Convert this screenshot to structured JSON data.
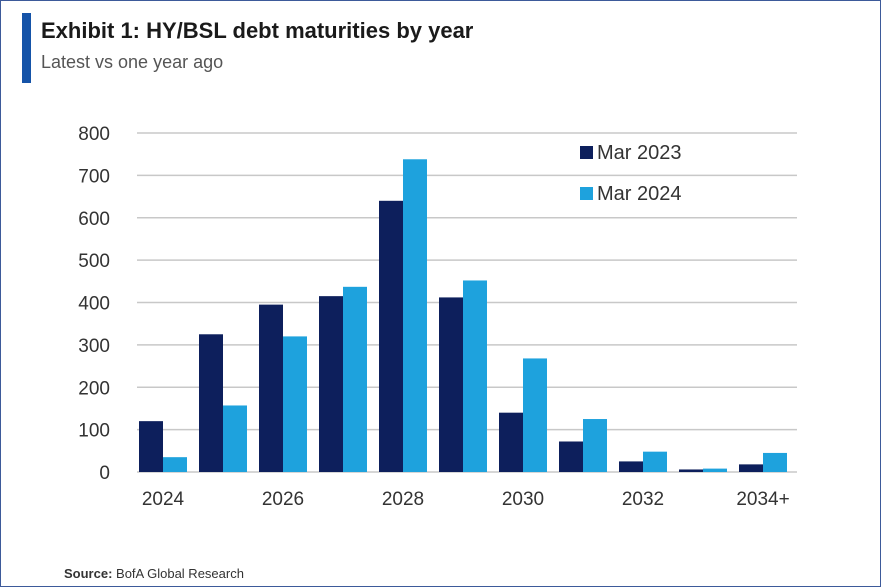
{
  "header": {
    "title": "Exhibit 1: HY/BSL debt maturities by year",
    "subtitle": "Latest vs one year ago"
  },
  "footer": {
    "source_label": "Source:",
    "source_text": "BofA Global Research"
  },
  "colors": {
    "accent": "#1553a8",
    "series_1": "#0d1f5c",
    "series_2": "#1ea2dd",
    "grid": "#c8c8c8"
  },
  "chart_data": {
    "type": "bar",
    "title": "Exhibit 1: HY/BSL debt maturities by year",
    "subtitle": "Latest vs one year ago",
    "xlabel": "",
    "ylabel": "",
    "categories": [
      "2024",
      "2025",
      "2026",
      "2027",
      "2028",
      "2029",
      "2030",
      "2031",
      "2032",
      "2033",
      "2034+"
    ],
    "x_tick_labels": [
      "2024",
      "",
      "2026",
      "",
      "2028",
      "",
      "2030",
      "",
      "2032",
      "",
      "2034+"
    ],
    "y_ticks": [
      0,
      100,
      200,
      300,
      400,
      500,
      600,
      700,
      800
    ],
    "ylim": [
      0,
      800
    ],
    "grid": true,
    "legend_position": "top-right",
    "series": [
      {
        "name": "Mar 2023",
        "color": "#0d1f5c",
        "values": [
          120,
          325,
          395,
          415,
          640,
          412,
          140,
          72,
          25,
          6,
          18
        ]
      },
      {
        "name": "Mar 2024",
        "color": "#1ea2dd",
        "values": [
          35,
          157,
          320,
          437,
          738,
          452,
          268,
          125,
          48,
          8,
          45
        ]
      }
    ]
  }
}
